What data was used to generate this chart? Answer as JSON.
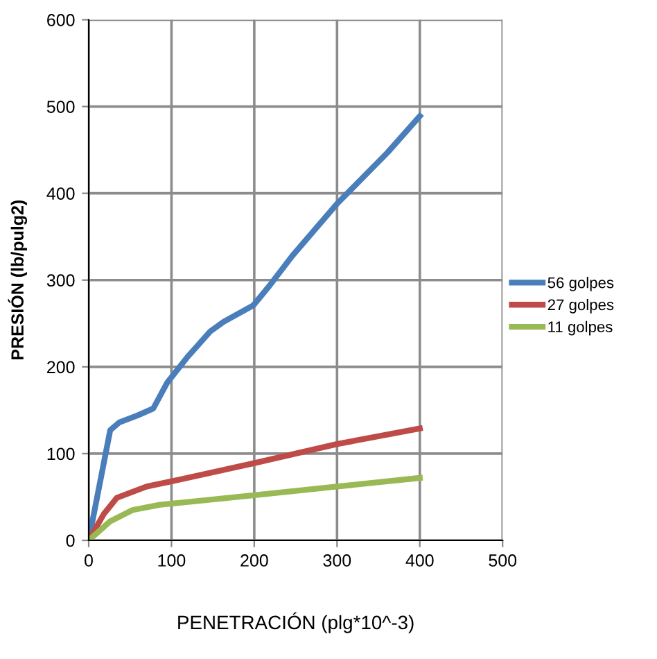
{
  "chart_data": {
    "type": "line",
    "xlabel": "PENETRACIÓN (plg*10^-3)",
    "ylabel": "PRESIÓN (lb/pulg2)",
    "xlim": [
      0,
      500
    ],
    "xticks": [
      0,
      100,
      200,
      300,
      400,
      500
    ],
    "ylim": [
      0,
      600
    ],
    "yticks": [
      0,
      100,
      200,
      300,
      400,
      500,
      600
    ],
    "grid": true,
    "legend": "right",
    "marker": "none",
    "line_style": "solid",
    "series": [
      {
        "name": "56 golpes",
        "color": "#4a7ebb",
        "x": [
          0,
          26,
          37,
          59,
          78,
          95,
          119,
          147,
          163,
          199,
          218,
          246,
          300,
          361,
          400
        ],
        "values": [
          0,
          127,
          136,
          144,
          152,
          182,
          211,
          241,
          252,
          271,
          293,
          328,
          388,
          447,
          489
        ]
      },
      {
        "name": "27 golpes",
        "color": "#be4b48",
        "x": [
          0,
          18,
          34,
          70,
          100,
          200,
          300,
          400
        ],
        "values": [
          0,
          30,
          49,
          62,
          68,
          89,
          111,
          129
        ]
      },
      {
        "name": "11 golpes",
        "color": "#98b954",
        "x": [
          0,
          26,
          53,
          86,
          200,
          300,
          400
        ],
        "values": [
          0,
          22,
          35,
          41,
          52,
          62,
          72
        ]
      }
    ]
  }
}
